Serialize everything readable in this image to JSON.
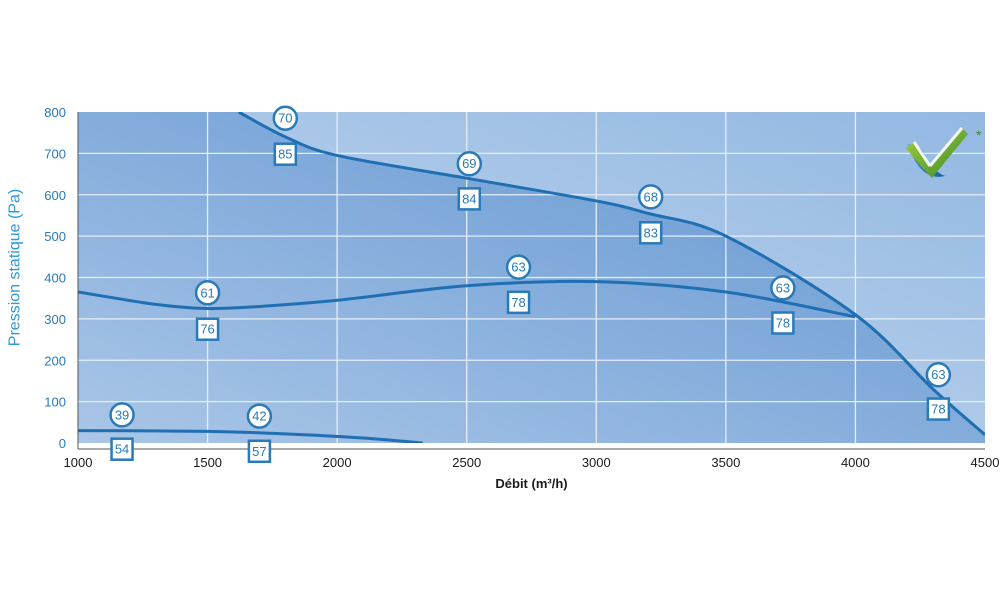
{
  "chart_data": {
    "type": "line",
    "xlabel": "Débit (m³/h)",
    "ylabel": "Pression statique (Pa)",
    "xlim": [
      1000,
      4500
    ],
    "ylim": [
      0,
      800
    ],
    "xticks": [
      1000,
      1500,
      2000,
      2500,
      3000,
      3500,
      4000,
      4500
    ],
    "yticks": [
      0,
      100,
      200,
      300,
      400,
      500,
      600,
      700,
      800
    ],
    "grid": true,
    "colors": {
      "curve": "#1f6fb2",
      "grid": "#e6eef8",
      "fill_light": "#c5d7ee",
      "fill_dark": "#6a9ed4",
      "marker": "#2a7ab8"
    },
    "series": [
      {
        "x": [
          1620,
          1800,
          2000,
          2500,
          3000,
          3200,
          3500,
          4000,
          4300,
          4500
        ],
        "y": [
          800,
          740,
          695,
          640,
          585,
          555,
          500,
          310,
          130,
          20
        ]
      },
      {
        "x": [
          1000,
          1300,
          1500,
          1700,
          2000,
          2500,
          3000,
          3500,
          4000
        ],
        "y": [
          365,
          335,
          325,
          330,
          345,
          380,
          390,
          365,
          305
        ]
      },
      {
        "x": [
          1000,
          1500,
          1800,
          2100,
          2330
        ],
        "y": [
          30,
          28,
          22,
          12,
          0
        ]
      }
    ],
    "annotations": [
      {
        "label": "70",
        "shape": "circle",
        "x": 1800,
        "y": 785
      },
      {
        "label": "85",
        "shape": "square",
        "x": 1800,
        "y": 698
      },
      {
        "label": "69",
        "shape": "circle",
        "x": 2510,
        "y": 675
      },
      {
        "label": "84",
        "shape": "square",
        "x": 2510,
        "y": 590
      },
      {
        "label": "68",
        "shape": "circle",
        "x": 3210,
        "y": 595
      },
      {
        "label": "83",
        "shape": "square",
        "x": 3210,
        "y": 508
      },
      {
        "label": "61",
        "shape": "circle",
        "x": 1500,
        "y": 363
      },
      {
        "label": "76",
        "shape": "square",
        "x": 1500,
        "y": 275
      },
      {
        "label": "63",
        "shape": "circle",
        "x": 2700,
        "y": 425
      },
      {
        "label": "78",
        "shape": "square",
        "x": 2700,
        "y": 340
      },
      {
        "label": "63",
        "shape": "circle",
        "x": 3720,
        "y": 375
      },
      {
        "label": "78",
        "shape": "square",
        "x": 3720,
        "y": 290
      },
      {
        "label": "63",
        "shape": "circle",
        "x": 4320,
        "y": 165
      },
      {
        "label": "78",
        "shape": "square",
        "x": 4320,
        "y": 82
      },
      {
        "label": "39",
        "shape": "circle",
        "x": 1170,
        "y": 68
      },
      {
        "label": "54",
        "shape": "square",
        "x": 1170,
        "y": -15
      },
      {
        "label": "42",
        "shape": "circle",
        "x": 1700,
        "y": 65
      },
      {
        "label": "57",
        "shape": "square",
        "x": 1700,
        "y": -20
      }
    ]
  },
  "logo": {
    "name": "checkmark-certification-logo",
    "mark": "*"
  }
}
